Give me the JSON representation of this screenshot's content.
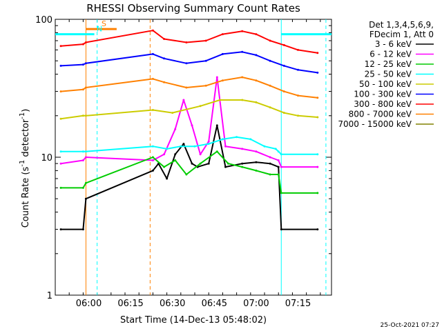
{
  "chart_data": {
    "type": "line",
    "title": "RHESSI Observing Summary Count Rates",
    "xlabel": "Start Time (14-Dec-13 05:48:02)",
    "ylabel": "Count Rate (s",
    "ylabel_sup": "-1",
    "ylabel_tail": " detector",
    "ylabel_end": ")",
    "y_scale": "log",
    "ylim": [
      1,
      100
    ],
    "xlim": [
      "05:48",
      "07:27"
    ],
    "x_ticks": [
      "06:00",
      "06:15",
      "06:30",
      "06:45",
      "07:00",
      "07:15"
    ],
    "y_ticks": [
      "1",
      "10",
      "100"
    ],
    "legend_header": [
      "Det 1,3,4,5,6,9,",
      "FDecim 1, Att 0"
    ],
    "legend_position": "right",
    "series": [
      {
        "name": "3 - 6 keV",
        "color": "#000000",
        "points": [
          [
            "05:50",
            3.0
          ],
          [
            "05:58",
            3.0
          ],
          [
            "05:59",
            5.0
          ],
          [
            "06:23",
            8.0
          ],
          [
            "06:25",
            9.0
          ],
          [
            "06:28",
            7.0
          ],
          [
            "06:31",
            10.5
          ],
          [
            "06:34",
            12.5
          ],
          [
            "06:37",
            9.0
          ],
          [
            "06:39",
            8.5
          ],
          [
            "06:43",
            9.0
          ],
          [
            "06:46",
            17.0
          ],
          [
            "06:49",
            8.5
          ],
          [
            "06:55",
            9.0
          ],
          [
            "07:00",
            9.2
          ],
          [
            "07:05",
            9.0
          ],
          [
            "07:08",
            8.5
          ],
          [
            "07:09",
            3.0
          ],
          [
            "07:22",
            3.0
          ]
        ]
      },
      {
        "name": "6 - 12 keV",
        "color": "#ff00ff",
        "points": [
          [
            "05:50",
            9.0
          ],
          [
            "05:58",
            9.5
          ],
          [
            "05:59",
            10.0
          ],
          [
            "06:23",
            9.5
          ],
          [
            "06:27",
            10.5
          ],
          [
            "06:31",
            16.0
          ],
          [
            "06:34",
            26.0
          ],
          [
            "06:37",
            17.0
          ],
          [
            "06:40",
            10.5
          ],
          [
            "06:43",
            13.0
          ],
          [
            "06:46",
            38.0
          ],
          [
            "06:49",
            12.0
          ],
          [
            "06:55",
            11.5
          ],
          [
            "07:00",
            11.0
          ],
          [
            "07:05",
            10.0
          ],
          [
            "07:08",
            9.5
          ],
          [
            "07:09",
            8.5
          ],
          [
            "07:22",
            8.5
          ]
        ]
      },
      {
        "name": "12 - 25 keV",
        "color": "#00cc00",
        "points": [
          [
            "05:50",
            6.0
          ],
          [
            "05:58",
            6.0
          ],
          [
            "05:59",
            6.5
          ],
          [
            "06:23",
            10.0
          ],
          [
            "06:27",
            8.5
          ],
          [
            "06:31",
            9.5
          ],
          [
            "06:35",
            7.5
          ],
          [
            "06:40",
            9.0
          ],
          [
            "06:46",
            11.0
          ],
          [
            "06:50",
            9.0
          ],
          [
            "06:55",
            8.5
          ],
          [
            "07:00",
            8.0
          ],
          [
            "07:05",
            7.5
          ],
          [
            "07:08",
            7.5
          ],
          [
            "07:09",
            5.5
          ],
          [
            "07:22",
            5.5
          ]
        ]
      },
      {
        "name": "25 - 50 keV",
        "color": "#00ffff",
        "points": [
          [
            "05:50",
            11.0
          ],
          [
            "05:58",
            11.0
          ],
          [
            "05:59",
            11.0
          ],
          [
            "06:23",
            12.0
          ],
          [
            "06:28",
            11.5
          ],
          [
            "06:33",
            12.0
          ],
          [
            "06:38",
            12.0
          ],
          [
            "06:43",
            12.5
          ],
          [
            "06:48",
            13.5
          ],
          [
            "06:53",
            14.0
          ],
          [
            "06:58",
            13.5
          ],
          [
            "07:03",
            12.0
          ],
          [
            "07:07",
            11.5
          ],
          [
            "07:08",
            11.0
          ],
          [
            "07:09",
            10.5
          ],
          [
            "07:22",
            10.5
          ]
        ]
      },
      {
        "name": "50 - 100 keV",
        "color": "#cccc00",
        "points": [
          [
            "05:50",
            19.0
          ],
          [
            "05:58",
            20.0
          ],
          [
            "05:59",
            20.0
          ],
          [
            "06:23",
            22.0
          ],
          [
            "06:30",
            21.0
          ],
          [
            "06:40",
            23.5
          ],
          [
            "06:47",
            26.0
          ],
          [
            "06:55",
            26.0
          ],
          [
            "07:00",
            25.0
          ],
          [
            "07:05",
            23.0
          ],
          [
            "07:10",
            21.0
          ],
          [
            "07:15",
            20.0
          ],
          [
            "07:22",
            19.5
          ]
        ]
      },
      {
        "name": "100 - 300 keV",
        "color": "#0000ff",
        "points": [
          [
            "05:50",
            46.0
          ],
          [
            "05:58",
            47.0
          ],
          [
            "05:59",
            48.0
          ],
          [
            "06:23",
            56.0
          ],
          [
            "06:27",
            52.0
          ],
          [
            "06:35",
            48.0
          ],
          [
            "06:42",
            50.0
          ],
          [
            "06:48",
            56.0
          ],
          [
            "06:55",
            58.0
          ],
          [
            "07:00",
            55.0
          ],
          [
            "07:05",
            50.0
          ],
          [
            "07:10",
            46.0
          ],
          [
            "07:15",
            43.0
          ],
          [
            "07:22",
            41.0
          ]
        ]
      },
      {
        "name": "300 - 800 keV",
        "color": "#ff0000",
        "points": [
          [
            "05:50",
            64.0
          ],
          [
            "05:58",
            66.0
          ],
          [
            "05:59",
            68.0
          ],
          [
            "06:23",
            83.0
          ],
          [
            "06:27",
            72.0
          ],
          [
            "06:35",
            68.0
          ],
          [
            "06:42",
            70.0
          ],
          [
            "06:48",
            78.0
          ],
          [
            "06:55",
            82.0
          ],
          [
            "07:00",
            78.0
          ],
          [
            "07:05",
            70.0
          ],
          [
            "07:10",
            65.0
          ],
          [
            "07:15",
            60.0
          ],
          [
            "07:22",
            57.0
          ]
        ]
      },
      {
        "name": "800 - 7000 keV",
        "color": "#ff8000",
        "points": [
          [
            "05:50",
            30.0
          ],
          [
            "05:58",
            31.0
          ],
          [
            "05:59",
            32.0
          ],
          [
            "06:23",
            37.0
          ],
          [
            "06:27",
            35.0
          ],
          [
            "06:35",
            32.0
          ],
          [
            "06:42",
            33.0
          ],
          [
            "06:48",
            36.0
          ],
          [
            "06:55",
            38.0
          ],
          [
            "07:00",
            36.0
          ],
          [
            "07:05",
            33.0
          ],
          [
            "07:10",
            30.0
          ],
          [
            "07:15",
            28.0
          ],
          [
            "07:22",
            27.0
          ]
        ]
      },
      {
        "name": "7000 - 15000 keV",
        "color": "#808000",
        "points": []
      }
    ],
    "annotations": [
      {
        "label": "S",
        "color": "#ff8000",
        "x_start": "05:59",
        "x_end": "06:10",
        "y": 85
      },
      {
        "label": "N",
        "color": "#00ffff",
        "x_start": "05:48",
        "x_end": "06:02",
        "y": 78
      },
      {
        "label": "",
        "color": "#00ffff",
        "x_start": "07:09",
        "x_end": "07:27",
        "y": 78
      }
    ],
    "vertical_lines": [
      {
        "x": "05:59",
        "color": "#ff8000",
        "style": "solid"
      },
      {
        "x": "06:03",
        "color": "#00ffff",
        "style": "dashed"
      },
      {
        "x": "06:22",
        "color": "#ff8000",
        "style": "dashed"
      },
      {
        "x": "07:09",
        "color": "#00ffff",
        "style": "solid"
      },
      {
        "x": "07:25",
        "color": "#00ffff",
        "style": "dashed"
      }
    ],
    "grid": false
  },
  "footer": {
    "timestamp": "25-Oct-2021 07:27"
  }
}
